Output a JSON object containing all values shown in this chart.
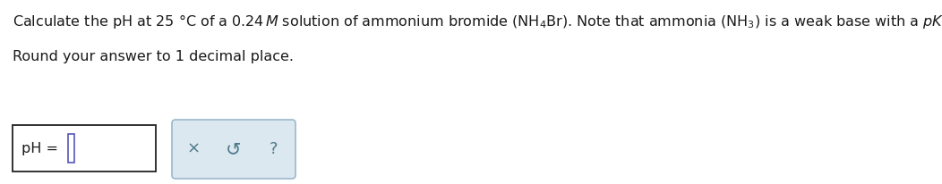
{
  "bg_color": "#ffffff",
  "text_color": "#1a1a1a",
  "font_size": 11.5,
  "line2": "Round your answer to 1 decimal place.",
  "ph_label": "pH = ",
  "input_box_border": "#222222",
  "cursor_color": "#5555bb",
  "button_bg": "#dce8f0",
  "button_border": "#9ab8cc",
  "button_text_color": "#4d7a8a",
  "fig_width": 10.52,
  "fig_height": 2.06,
  "dpi": 100
}
